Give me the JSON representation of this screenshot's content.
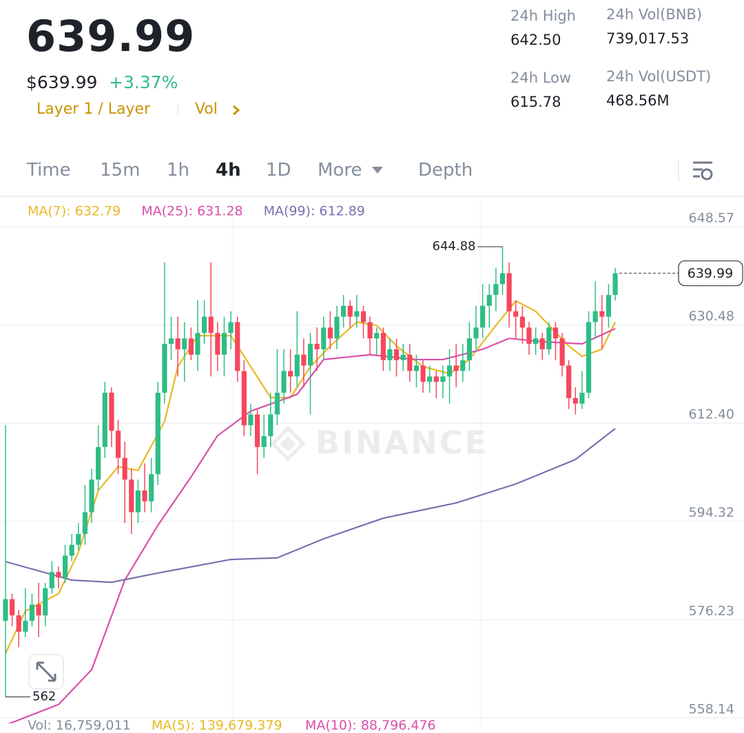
{
  "header": {
    "price": "639.99",
    "usd_price": "$639.99",
    "change": "+3.37%",
    "tags": "Layer 1 / Layer",
    "vol_link": "Vol"
  },
  "stats": [
    {
      "label": "24h High",
      "value": "642.50"
    },
    {
      "label": "24h Vol(BNB)",
      "value": "739,017.53"
    },
    {
      "label": "24h Low",
      "value": "615.78"
    },
    {
      "label": "24h Vol(USDT)",
      "value": "468.56M"
    }
  ],
  "tabs": [
    {
      "label": "Time",
      "active": false
    },
    {
      "label": "15m",
      "active": false
    },
    {
      "label": "1h",
      "active": false
    },
    {
      "label": "4h",
      "active": true
    },
    {
      "label": "1D",
      "active": false
    },
    {
      "label": "More",
      "active": false
    },
    {
      "label": "Depth",
      "active": false
    }
  ],
  "chart_data": {
    "type": "candlestick",
    "up_color": "#2ebd85",
    "down_color": "#f6465d",
    "ylim": [
      555.35,
      653.52
    ],
    "yticks": [
      648.57,
      630.48,
      {
        "value": 612.4,
        "label": "612.40"
      },
      594.32,
      576.23,
      558.14
    ],
    "grid": true,
    "candles": [
      [
        576,
        612,
        562,
        580
      ],
      [
        580,
        581,
        575,
        577
      ],
      [
        577,
        578,
        571.13,
        574
      ],
      [
        574,
        582,
        573,
        576
      ],
      [
        576,
        581,
        575,
        579
      ],
      [
        579,
        583,
        573,
        577
      ],
      [
        577,
        583,
        575,
        582
      ],
      [
        582,
        587,
        581,
        585
      ],
      [
        585,
        586,
        582,
        584
      ],
      [
        584,
        590,
        583,
        588
      ],
      [
        588,
        592,
        587,
        590
      ],
      [
        590,
        594,
        589,
        592
      ],
      [
        592,
        601,
        590,
        596
      ],
      [
        596,
        604,
        594,
        602
      ],
      [
        602,
        612,
        600,
        608
      ],
      [
        608,
        620,
        606,
        618
      ],
      [
        618,
        619,
        608,
        611
      ],
      [
        611,
        613,
        603,
        606
      ],
      [
        606,
        609,
        594,
        602
      ],
      [
        602,
        604,
        592,
        596
      ],
      [
        596,
        602,
        594,
        600
      ],
      [
        600,
        605,
        596,
        598
      ],
      [
        598,
        606,
        596,
        603
      ],
      [
        603,
        620,
        601,
        618
      ],
      [
        618,
        642,
        616,
        627
      ],
      [
        627,
        632,
        624,
        628
      ],
      [
        628,
        632,
        621,
        626
      ],
      [
        626,
        631,
        620,
        628
      ],
      [
        628,
        630,
        624,
        625
      ],
      [
        625,
        635,
        622,
        629
      ],
      [
        629,
        635,
        627,
        632
      ],
      [
        632,
        642,
        621,
        629
      ],
      [
        629,
        631,
        622,
        625
      ],
      [
        625,
        632,
        621,
        629
      ],
      [
        629,
        633,
        626,
        631
      ],
      [
        631,
        632,
        620,
        622
      ],
      [
        622,
        624,
        610,
        612
      ],
      [
        612,
        616,
        610,
        614
      ],
      [
        614,
        615,
        603,
        608
      ],
      [
        608,
        614,
        606,
        610
      ],
      [
        610,
        618,
        608,
        614
      ],
      [
        614,
        626,
        612,
        618
      ],
      [
        618,
        626,
        616,
        622
      ],
      [
        622,
        626,
        618,
        621
      ],
      [
        621,
        633,
        619,
        625
      ],
      [
        625,
        628,
        619,
        623
      ],
      [
        623,
        629,
        614,
        627
      ],
      [
        627,
        630,
        622,
        626
      ],
      [
        626,
        632,
        624,
        630
      ],
      [
        630,
        633,
        626,
        628
      ],
      [
        628,
        634,
        626,
        632
      ],
      [
        632,
        636,
        630,
        634
      ],
      [
        634,
        635,
        630,
        632
      ],
      [
        632,
        636,
        630,
        633
      ],
      [
        633,
        634,
        628,
        631
      ],
      [
        631,
        632,
        625,
        628
      ],
      [
        628,
        630,
        625,
        629
      ],
      [
        629,
        630,
        622,
        624
      ],
      [
        624,
        628,
        622,
        626
      ],
      [
        626,
        628,
        621,
        624
      ],
      [
        624,
        627,
        622,
        625
      ],
      [
        625,
        627,
        620,
        622
      ],
      [
        622,
        625,
        619,
        623
      ],
      [
        623,
        624,
        618,
        620
      ],
      [
        620,
        623,
        618,
        621
      ],
      [
        621,
        622,
        617,
        620
      ],
      [
        620,
        623,
        617,
        621
      ],
      [
        621,
        626,
        616,
        623
      ],
      [
        623,
        627,
        619,
        622
      ],
      [
        622,
        627,
        620,
        624
      ],
      [
        624,
        631,
        622,
        628
      ],
      [
        628,
        634,
        626,
        630
      ],
      [
        630,
        638,
        628,
        634
      ],
      [
        634,
        638,
        630,
        636
      ],
      [
        636,
        641,
        633,
        638
      ],
      [
        638,
        644.88,
        636,
        640
      ],
      [
        640,
        642,
        630,
        633
      ],
      [
        633,
        635,
        628,
        632
      ],
      [
        632,
        634,
        627,
        630
      ],
      [
        630,
        631,
        625,
        627
      ],
      [
        627,
        630,
        625,
        628
      ],
      [
        628,
        629,
        624,
        626
      ],
      [
        626,
        631,
        625,
        630
      ],
      [
        630,
        631,
        624,
        628
      ],
      [
        628,
        629,
        621,
        623
      ],
      [
        623,
        624,
        615,
        617
      ],
      [
        617,
        619,
        614,
        616
      ],
      [
        616,
        622,
        615,
        618
      ],
      [
        618,
        633,
        617,
        631
      ],
      [
        631,
        638.5,
        628,
        633
      ],
      [
        633,
        636,
        626,
        632
      ],
      [
        632,
        638,
        630,
        636
      ],
      [
        636,
        641,
        635,
        639.99
      ]
    ],
    "series": [
      {
        "name": "MA(7): 632.79",
        "color": "#e8b923",
        "x": [
          0,
          3,
          8,
          11,
          14,
          17,
          20,
          24,
          26,
          29,
          34,
          37,
          40,
          43,
          46,
          49,
          53,
          56,
          59,
          63,
          67,
          70,
          74,
          77,
          80,
          82,
          85,
          87,
          90,
          92
        ],
        "values": [
          570,
          577.8,
          581,
          588.6,
          600,
          604.4,
          603.7,
          612.7,
          622.8,
          628.5,
          628.5,
          622.8,
          617.1,
          617.1,
          622.8,
          626.6,
          631,
          630.4,
          626.6,
          622.8,
          621.5,
          624.1,
          630.4,
          634.9,
          633,
          630.4,
          626.6,
          624.7,
          626,
          631
        ]
      },
      {
        "name": "MA(25): 631.28",
        "color": "#d94fa9",
        "x": [
          0,
          8,
          13,
          18,
          23,
          28,
          32,
          37,
          44,
          48,
          55,
          62,
          66,
          72,
          76,
          81,
          87,
          92
        ],
        "values": [
          556.8,
          560.6,
          567,
          583.5,
          593.6,
          602.5,
          610.1,
          614.6,
          617.7,
          624.1,
          625,
          624.1,
          624.1,
          626,
          628,
          627.4,
          627,
          629.8
        ]
      },
      {
        "name": "MA(99): 612.89",
        "color": "#7b6fb0",
        "x": [
          0,
          10,
          16,
          23,
          34,
          41,
          48,
          57,
          68,
          77,
          86,
          92
        ],
        "values": [
          586.9,
          583.5,
          583.1,
          584.8,
          587.3,
          587.6,
          591.1,
          594.9,
          597.7,
          601.2,
          605.7,
          611.4
        ]
      }
    ]
  },
  "watermark": "BINANCE",
  "volume": {
    "vol": "Vol: 16,759,011",
    "ma5": "MA(5): 139,679.379",
    "ma10": "MA(10): 88,796.476"
  }
}
